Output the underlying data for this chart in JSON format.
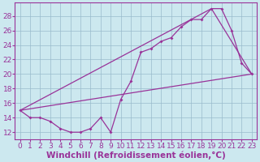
{
  "background_color": "#cce8ef",
  "line_color": "#993399",
  "grid_color": "#99bbcc",
  "xlabel": "Windchill (Refroidissement éolien,°C)",
  "xlabel_fontsize": 7.5,
  "tick_fontsize": 6.5,
  "xlim": [
    -0.5,
    23.5
  ],
  "ylim": [
    11.0,
    29.8
  ],
  "yticks": [
    12,
    14,
    16,
    18,
    20,
    22,
    24,
    26,
    28
  ],
  "xticks": [
    0,
    1,
    2,
    3,
    4,
    5,
    6,
    7,
    8,
    9,
    10,
    11,
    12,
    13,
    14,
    15,
    16,
    17,
    18,
    19,
    20,
    21,
    22,
    23
  ],
  "jagged_x": [
    0,
    1,
    2,
    3,
    4,
    5,
    6,
    7,
    8,
    9,
    10,
    11,
    12,
    13,
    14,
    15,
    16,
    17,
    18,
    19,
    20,
    21,
    22,
    23
  ],
  "jagged_y": [
    15,
    14,
    14,
    13.5,
    12.5,
    12,
    12,
    12.5,
    14,
    12,
    16.5,
    19,
    23,
    23.5,
    24.5,
    25,
    26.5,
    27.5,
    27.5,
    29,
    29,
    26,
    21.5,
    20
  ],
  "upper_line_x": [
    0,
    19,
    23
  ],
  "upper_line_y": [
    15,
    29,
    20
  ],
  "lower_line_x": [
    0,
    23
  ],
  "lower_line_y": [
    15,
    20
  ],
  "figwidth": 3.2,
  "figheight": 2.0,
  "dpi": 100
}
